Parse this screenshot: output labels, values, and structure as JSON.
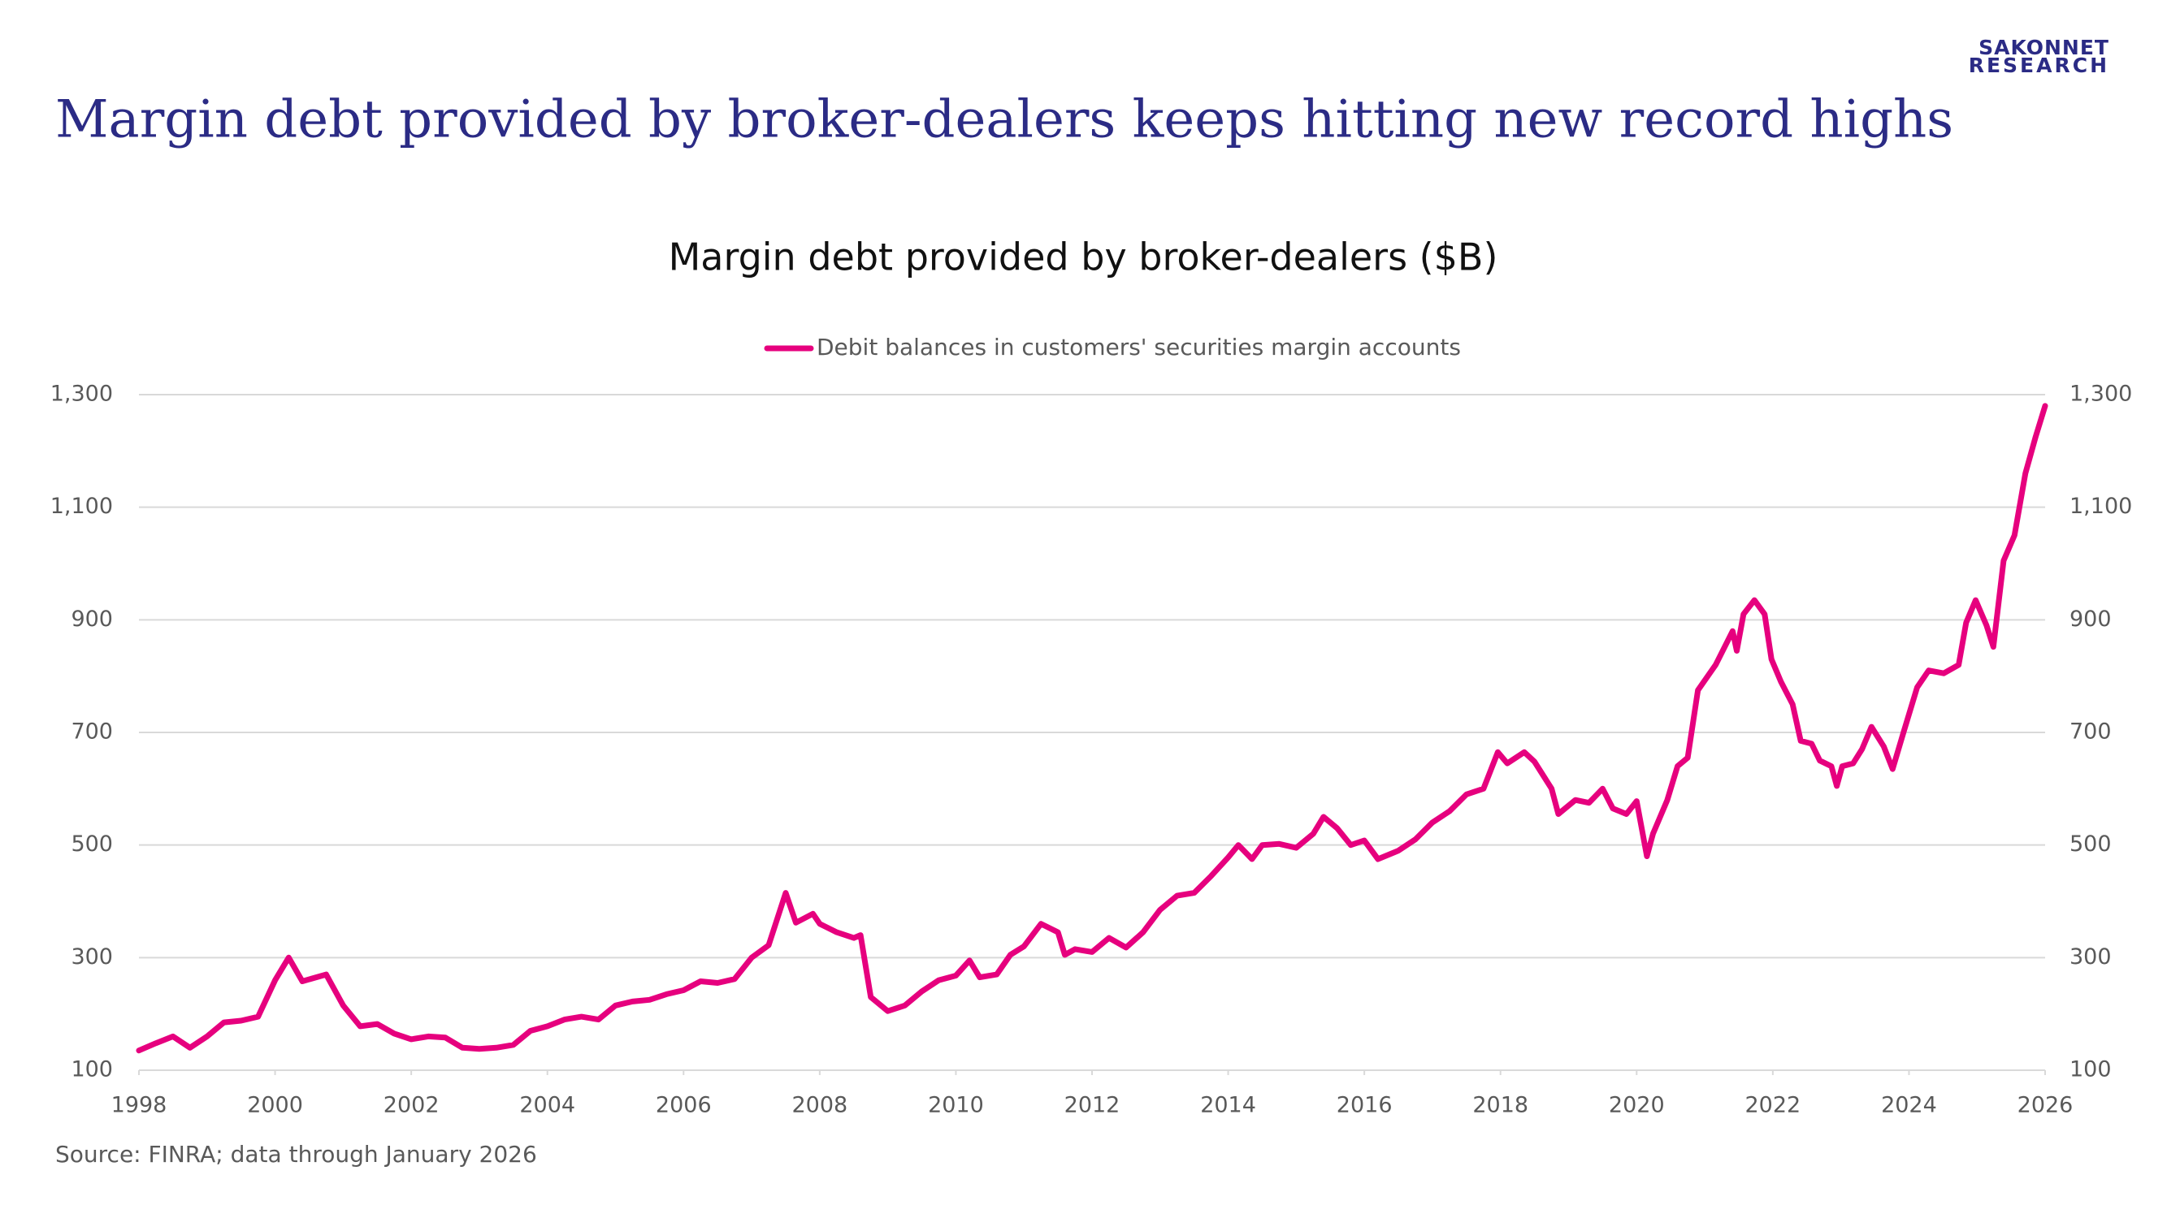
{
  "headline": "Margin debt provided by broker-dealers keeps hitting new record highs",
  "logo": [
    "SAKONNET",
    "RESEARCH"
  ],
  "chart_data": {
    "type": "line",
    "title": "Margin debt provided by broker-dealers ($B)",
    "source": "Source: FINRA; data through January 2026",
    "legend": "top",
    "grid": true,
    "x": [
      1998.0,
      1998.25,
      1998.5,
      1998.75,
      1999.0,
      1999.25,
      1999.5,
      1999.75,
      2000.0,
      2000.2,
      2000.4,
      2000.75,
      2001.0,
      2001.25,
      2001.5,
      2001.75,
      2002.0,
      2002.25,
      2002.5,
      2002.75,
      2003.0,
      2003.25,
      2003.5,
      2003.75,
      2004.0,
      2004.25,
      2004.5,
      2004.75,
      2005.0,
      2005.25,
      2005.5,
      2005.75,
      2006.0,
      2006.25,
      2006.5,
      2006.75,
      2007.0,
      2007.25,
      2007.4,
      2007.5,
      2007.65,
      2007.9,
      2008.0,
      2008.25,
      2008.5,
      2008.6,
      2008.75,
      2009.0,
      2009.25,
      2009.5,
      2009.75,
      2010.0,
      2010.2,
      2010.35,
      2010.6,
      2010.8,
      2011.0,
      2011.25,
      2011.5,
      2011.6,
      2011.75,
      2012.0,
      2012.25,
      2012.5,
      2012.75,
      2013.0,
      2013.25,
      2013.5,
      2013.75,
      2014.0,
      2014.15,
      2014.35,
      2014.5,
      2014.75,
      2015.0,
      2015.25,
      2015.4,
      2015.6,
      2015.8,
      2016.0,
      2016.2,
      2016.5,
      2016.75,
      2017.0,
      2017.25,
      2017.5,
      2017.75,
      2017.96,
      2018.1,
      2018.35,
      2018.5,
      2018.75,
      2018.85,
      2019.1,
      2019.3,
      2019.5,
      2019.65,
      2019.85,
      2020.0,
      2020.15,
      2020.24,
      2020.45,
      2020.6,
      2020.75,
      2020.9,
      2021.16,
      2021.41,
      2021.47,
      2021.57,
      2021.73,
      2021.88,
      2021.98,
      2022.12,
      2022.29,
      2022.41,
      2022.57,
      2022.69,
      2022.86,
      2022.94,
      2023.02,
      2023.18,
      2023.31,
      2023.45,
      2023.63,
      2023.76,
      2023.92,
      2024.12,
      2024.29,
      2024.51,
      2024.73,
      2024.84,
      2024.98,
      2025.14,
      2025.24,
      2025.39,
      2025.55,
      2025.71,
      2025.86,
      2026.0
    ],
    "series": [
      {
        "name": "Debit balances in customers' securities margin accounts",
        "color": "#e6007e",
        "values": [
          135,
          148,
          160,
          140,
          160,
          185,
          188,
          195,
          260,
          300,
          258,
          270,
          215,
          178,
          182,
          165,
          155,
          160,
          158,
          140,
          138,
          140,
          145,
          170,
          178,
          190,
          195,
          190,
          215,
          222,
          225,
          235,
          242,
          258,
          255,
          262,
          300,
          322,
          378,
          415,
          362,
          378,
          360,
          345,
          335,
          340,
          230,
          205,
          215,
          240,
          260,
          268,
          295,
          265,
          270,
          305,
          320,
          360,
          345,
          305,
          315,
          310,
          335,
          318,
          345,
          385,
          410,
          415,
          445,
          478,
          500,
          475,
          500,
          502,
          495,
          520,
          550,
          530,
          500,
          508,
          475,
          490,
          510,
          540,
          560,
          590,
          600,
          665,
          645,
          665,
          648,
          600,
          555,
          580,
          575,
          600,
          565,
          555,
          578,
          480,
          520,
          580,
          640,
          655,
          775,
          820,
          880,
          845,
          910,
          935,
          910,
          830,
          790,
          750,
          685,
          680,
          650,
          640,
          605,
          640,
          645,
          670,
          710,
          675,
          635,
          700,
          780,
          810,
          805,
          820,
          895,
          935,
          890,
          852,
          1005,
          1050,
          1160,
          1225,
          1280
        ]
      }
    ],
    "xlim": [
      1998,
      2026
    ],
    "xticks": [
      1998,
      2000,
      2002,
      2004,
      2006,
      2008,
      2010,
      2012,
      2014,
      2016,
      2018,
      2020,
      2022,
      2024,
      2026
    ],
    "ylim": [
      100,
      1300
    ],
    "yticks": [
      100,
      300,
      500,
      700,
      900,
      {
        "value": 1100,
        "label": "1,100"
      },
      {
        "value": 1300,
        "label": "1,300"
      }
    ]
  }
}
